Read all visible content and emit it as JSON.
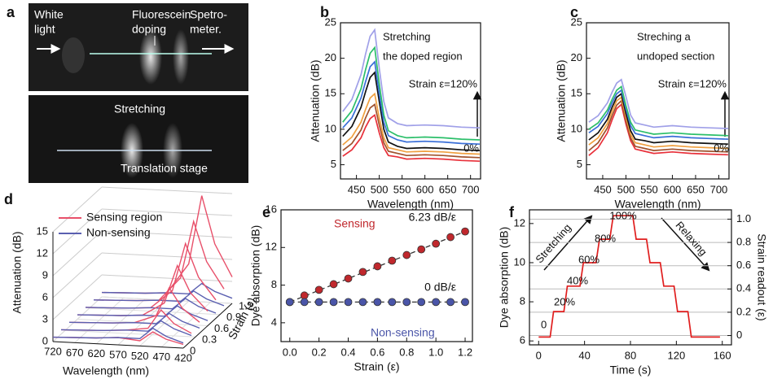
{
  "photo": {
    "panel_label": "a",
    "labels": [
      [
        "White",
        "light"
      ],
      [
        "Fluorescein",
        "doping"
      ],
      [
        "Spetro-",
        "meter."
      ],
      [
        "Stretching"
      ],
      [
        "Translation stage"
      ]
    ]
  },
  "chart_data": [
    {
      "type": "line",
      "panel_label": "b",
      "x_label": "Wavelength (nm)",
      "y_label": "Attenuation (dB)",
      "annotations": [
        "Stretching",
        "the doped region",
        "Strain ε=120%",
        "0%"
      ],
      "x": [
        420,
        440,
        460,
        470,
        480,
        490,
        500,
        510,
        520,
        540,
        560,
        600,
        640,
        680,
        720
      ],
      "xlim": [
        415,
        722
      ],
      "xticks": [
        450,
        500,
        550,
        600,
        650,
        700
      ],
      "ylim": [
        3,
        25
      ],
      "yticks": [
        5,
        10,
        15,
        20,
        25
      ],
      "grid": false,
      "series": [
        {
          "color": "#e8303a",
          "values": [
            6.2,
            7.1,
            8.8,
            10.3,
            11.5,
            12,
            9.5,
            7.4,
            6.3,
            6.1,
            5.8,
            5.9,
            5.8,
            5.6,
            5.5
          ]
        },
        {
          "color": "#a0522d",
          "values": [
            7,
            8.0,
            9.9,
            11.6,
            13,
            13.5,
            10.6,
            8.1,
            6.9,
            6.6,
            6.3,
            6.4,
            6.3,
            6.1,
            6.0
          ]
        },
        {
          "color": "#f0a040",
          "values": [
            7.8,
            8.9,
            11.0,
            12.8,
            14.4,
            15,
            11.6,
            8.8,
            7.4,
            7.1,
            6.8,
            6.9,
            6.8,
            6.6,
            6.5
          ]
        },
        {
          "color": "#111111",
          "values": [
            9,
            10.4,
            13.1,
            15.3,
            17.3,
            18,
            13.9,
            10.0,
            8.2,
            7.6,
            7.3,
            7.4,
            7.3,
            7.1,
            7.0
          ]
        },
        {
          "color": "#3a6fd8",
          "values": [
            10.2,
            11.6,
            14.4,
            16.7,
            18.8,
            19.5,
            15.0,
            11.0,
            9.1,
            8.5,
            8.2,
            8.3,
            8.2,
            8.0,
            7.9
          ]
        },
        {
          "color": "#2cbf6a",
          "values": [
            11,
            12.6,
            15.7,
            18.4,
            20.7,
            21.5,
            16.4,
            12.0,
            9.8,
            9.1,
            8.8,
            8.9,
            8.8,
            8.6,
            8.5
          ]
        },
        {
          "color": "#a0a0e8",
          "values": [
            12.5,
            14.2,
            17.7,
            20.6,
            23.1,
            24,
            18.6,
            13.9,
            11.6,
            10.8,
            10.5,
            10.6,
            10.5,
            10.3,
            10.2
          ]
        }
      ]
    },
    {
      "type": "line",
      "panel_label": "c",
      "x_label": "Wavelength (nm)",
      "y_label": "Attenuation (dB)",
      "annotations": [
        "Streching a",
        "undoped section",
        "Strain ε=120%",
        "0%"
      ],
      "x": [
        420,
        440,
        460,
        470,
        480,
        490,
        500,
        510,
        520,
        540,
        560,
        600,
        640,
        680,
        720
      ],
      "xlim": [
        415,
        722
      ],
      "xticks": [
        450,
        500,
        550,
        600,
        650,
        700
      ],
      "ylim": [
        3,
        25
      ],
      "yticks": [
        5,
        10,
        15,
        20,
        25
      ],
      "grid": false,
      "series": [
        {
          "color": "#e8303a",
          "values": [
            6.3,
            7.4,
            9.5,
            11.3,
            12.9,
            13.5,
            10.7,
            8.4,
            7.2,
            6.9,
            6.6,
            6.8,
            6.6,
            6.5,
            6.4
          ]
        },
        {
          "color": "#a0522d",
          "values": [
            7,
            8.1,
            10.2,
            11.9,
            13.4,
            14,
            11.2,
            8.8,
            7.6,
            7.3,
            7.0,
            7.2,
            7.0,
            6.9,
            6.8
          ]
        },
        {
          "color": "#f0a040",
          "values": [
            7.8,
            8.8,
            10.8,
            12.5,
            14,
            14.5,
            11.7,
            9.3,
            8.1,
            7.8,
            7.5,
            7.7,
            7.5,
            7.4,
            7.3
          ]
        },
        {
          "color": "#111111",
          "values": [
            8.5,
            9.5,
            11.4,
            13.1,
            14.5,
            15,
            12.2,
            9.8,
            8.6,
            8.4,
            8.1,
            8.3,
            8.1,
            8.0,
            7.9
          ]
        },
        {
          "color": "#3a6fd8",
          "values": [
            9.5,
            10.4,
            12.2,
            13.7,
            15,
            15.5,
            12.8,
            10.5,
            9.4,
            9.1,
            8.8,
            9.0,
            8.8,
            8.7,
            8.6
          ]
        },
        {
          "color": "#2cbf6a",
          "values": [
            10,
            10.9,
            12.7,
            14.2,
            15.5,
            16,
            13.3,
            11.0,
            9.9,
            9.6,
            9.3,
            9.5,
            9.3,
            9.2,
            9.1
          ]
        },
        {
          "color": "#a0a0e8",
          "values": [
            11,
            11.9,
            13.7,
            15.2,
            16.5,
            17,
            14.6,
            12.0,
            10.9,
            10.6,
            10.3,
            10.5,
            10.3,
            10.2,
            10.1
          ]
        }
      ]
    },
    {
      "type": "waterfall3d",
      "panel_label": "d",
      "x_label": "Wavelength (nm)",
      "y_label": "Attenuation (dB)",
      "z_label": "Strain (ε)",
      "legend": "upper left",
      "x": [
        720,
        670,
        620,
        570,
        520,
        490,
        460,
        420
      ],
      "strains": [
        0,
        0.2,
        0.4,
        0.6,
        0.8,
        1,
        1.2
      ],
      "xlim": [
        720,
        420
      ],
      "xticks": [
        720,
        670,
        620,
        570,
        520,
        470,
        420
      ],
      "ylim": [
        0,
        15
      ],
      "yticks": [
        0,
        3,
        6,
        9,
        12,
        15
      ],
      "zlim": [
        0,
        1.2
      ],
      "zticks": [
        0,
        0.3,
        0.6,
        0.9,
        1.2
      ],
      "series": [
        {
          "name": "Sensing region",
          "color": "#e8506a",
          "values": [
            [
              0.6,
              0.7,
              0.8,
              1.0,
              0.7,
              2,
              1.1,
              0.5
            ],
            [
              0.6,
              0.7,
              0.8,
              1.0,
              1.4,
              4,
              2.2,
              1.0
            ],
            [
              0.6,
              0.7,
              0.8,
              1.0,
              2.1,
              6,
              3.3,
              1.5
            ],
            [
              0.6,
              0.7,
              0.8,
              1.0,
              2.8,
              8,
              4.4,
              2.0
            ],
            [
              0.6,
              0.7,
              0.8,
              1.0,
              3.5,
              10,
              5.5,
              2.5
            ],
            [
              0.6,
              0.7,
              0.8,
              1.0,
              4.2,
              12,
              6.6,
              3.0
            ],
            [
              0.6,
              0.7,
              0.8,
              1.0,
              5.1,
              14.5,
              8.0,
              3.6
            ]
          ]
        },
        {
          "name": "Non-sensing",
          "color": "#5a5fb0",
          "values": [
            [
              0.6,
              0.7,
              0.8,
              1.0,
              1.0,
              2.5,
              1.5,
              0.7
            ],
            [
              0.6,
              0.7,
              0.8,
              1.0,
              1.0,
              2.5,
              1.5,
              0.7
            ],
            [
              0.6,
              0.7,
              0.8,
              1.0,
              1.0,
              2.5,
              1.5,
              0.7
            ],
            [
              0.6,
              0.7,
              0.8,
              1.0,
              1.0,
              2.5,
              1.5,
              0.7
            ],
            [
              0.6,
              0.7,
              0.8,
              1.0,
              1.0,
              2.5,
              1.5,
              0.7
            ],
            [
              0.6,
              0.7,
              0.8,
              1.0,
              1.0,
              2.5,
              1.5,
              0.7
            ],
            [
              0.6,
              0.7,
              0.8,
              1.0,
              1.0,
              2.5,
              1.5,
              0.7
            ]
          ]
        }
      ]
    },
    {
      "type": "scatter",
      "panel_label": "e",
      "x_label": "Strain (ε)",
      "y_label": "Dye absorption (dB)",
      "x": [
        0,
        0.1,
        0.2,
        0.3,
        0.4,
        0.5,
        0.6,
        0.7,
        0.8,
        0.9,
        1,
        1.1,
        1.2
      ],
      "xlim": [
        -0.06,
        1.25
      ],
      "xticks": [
        {
          "value": 0,
          "label": "0.0"
        },
        0.2,
        0.4,
        0.6,
        0.8,
        {
          "value": 1,
          "label": "1.0"
        },
        1.2
      ],
      "ylim": [
        2,
        16
      ],
      "yticks": [
        4,
        8,
        12,
        16
      ],
      "grid": false,
      "series": [
        {
          "name": "Sensing",
          "slope_label": "6.23 dB/ε",
          "color": "#c0282d",
          "values": [
            6.2,
            6.9,
            7.5,
            8.1,
            8.7,
            9.4,
            10.0,
            10.6,
            11.2,
            11.8,
            12.4,
            13.1,
            13.7
          ]
        },
        {
          "name": "Non-sensing",
          "slope_label": "0 dB/ε",
          "color": "#4a55a8",
          "values": [
            6.2,
            6.2,
            6.2,
            6.2,
            6.2,
            6.2,
            6.2,
            6.2,
            6.2,
            6.2,
            6.2,
            6.2,
            6.2
          ]
        }
      ]
    },
    {
      "type": "line",
      "panel_label": "f",
      "x_label": "Time (s)",
      "y_label": "Dye absorption (dB)",
      "y2_label": "Strain readout (ε)",
      "annotations": [
        "0",
        "20%",
        "40%",
        "60%",
        "80%",
        "100%",
        "Stretching",
        "Relaxing"
      ],
      "x": [
        0,
        10,
        13,
        22,
        25,
        36,
        39,
        50,
        53,
        62,
        65,
        82,
        85,
        94,
        97,
        106,
        109,
        118,
        121,
        130,
        133,
        158
      ],
      "xlim": [
        -8,
        168
      ],
      "xticks": [
        0,
        40,
        80,
        120,
        160
      ],
      "ylim": [
        5.8,
        12.7
      ],
      "yticks": [
        6,
        8,
        10,
        12
      ],
      "y2lim": [
        -0.08,
        1.08
      ],
      "y2ticks": [
        0,
        0.2,
        0.4,
        0.6,
        0.8,
        {
          "value": 1,
          "label": "1.0"
        }
      ],
      "grid": "y2",
      "series": [
        {
          "color": "#e01e1e",
          "values": [
            6.2,
            6.2,
            7.5,
            7.5,
            8.8,
            8.8,
            10.0,
            10.0,
            11.2,
            11.2,
            12.4,
            12.4,
            11.2,
            11.2,
            10.0,
            10.0,
            8.8,
            8.8,
            7.5,
            7.5,
            6.2,
            6.2
          ]
        }
      ]
    }
  ]
}
